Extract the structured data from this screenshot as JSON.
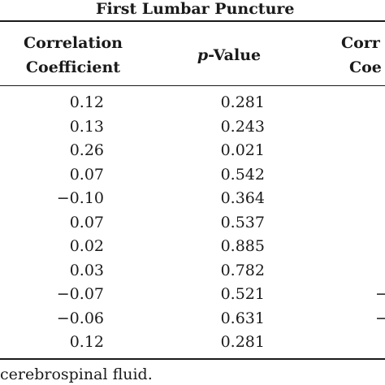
{
  "table": {
    "group_title": "First Lumbar Puncture",
    "headers": {
      "corr_line1": "Correlation",
      "corr_line2": "Coefficient",
      "p_prefix": "p",
      "p_suffix": "-Value",
      "right_line1": "Corr",
      "right_line2": "Coe"
    },
    "rows": [
      {
        "corr": "0.12",
        "p": "0.281",
        "right": ""
      },
      {
        "corr": "0.13",
        "p": "0.243",
        "right": ""
      },
      {
        "corr": "0.26",
        "p": "0.021",
        "right": ""
      },
      {
        "corr": "0.07",
        "p": "0.542",
        "right": ""
      },
      {
        "corr": "−0.10",
        "p": "0.364",
        "right": ""
      },
      {
        "corr": "0.07",
        "p": "0.537",
        "right": ""
      },
      {
        "corr": "0.02",
        "p": "0.885",
        "right": ""
      },
      {
        "corr": "0.03",
        "p": "0.782",
        "right": ""
      },
      {
        "corr": "−0.07",
        "p": "0.521",
        "right": "−"
      },
      {
        "corr": "−0.06",
        "p": "0.631",
        "right": "−"
      },
      {
        "corr": "0.12",
        "p": "0.281",
        "right": ""
      }
    ],
    "footnote": "cerebrospinal fluid."
  }
}
